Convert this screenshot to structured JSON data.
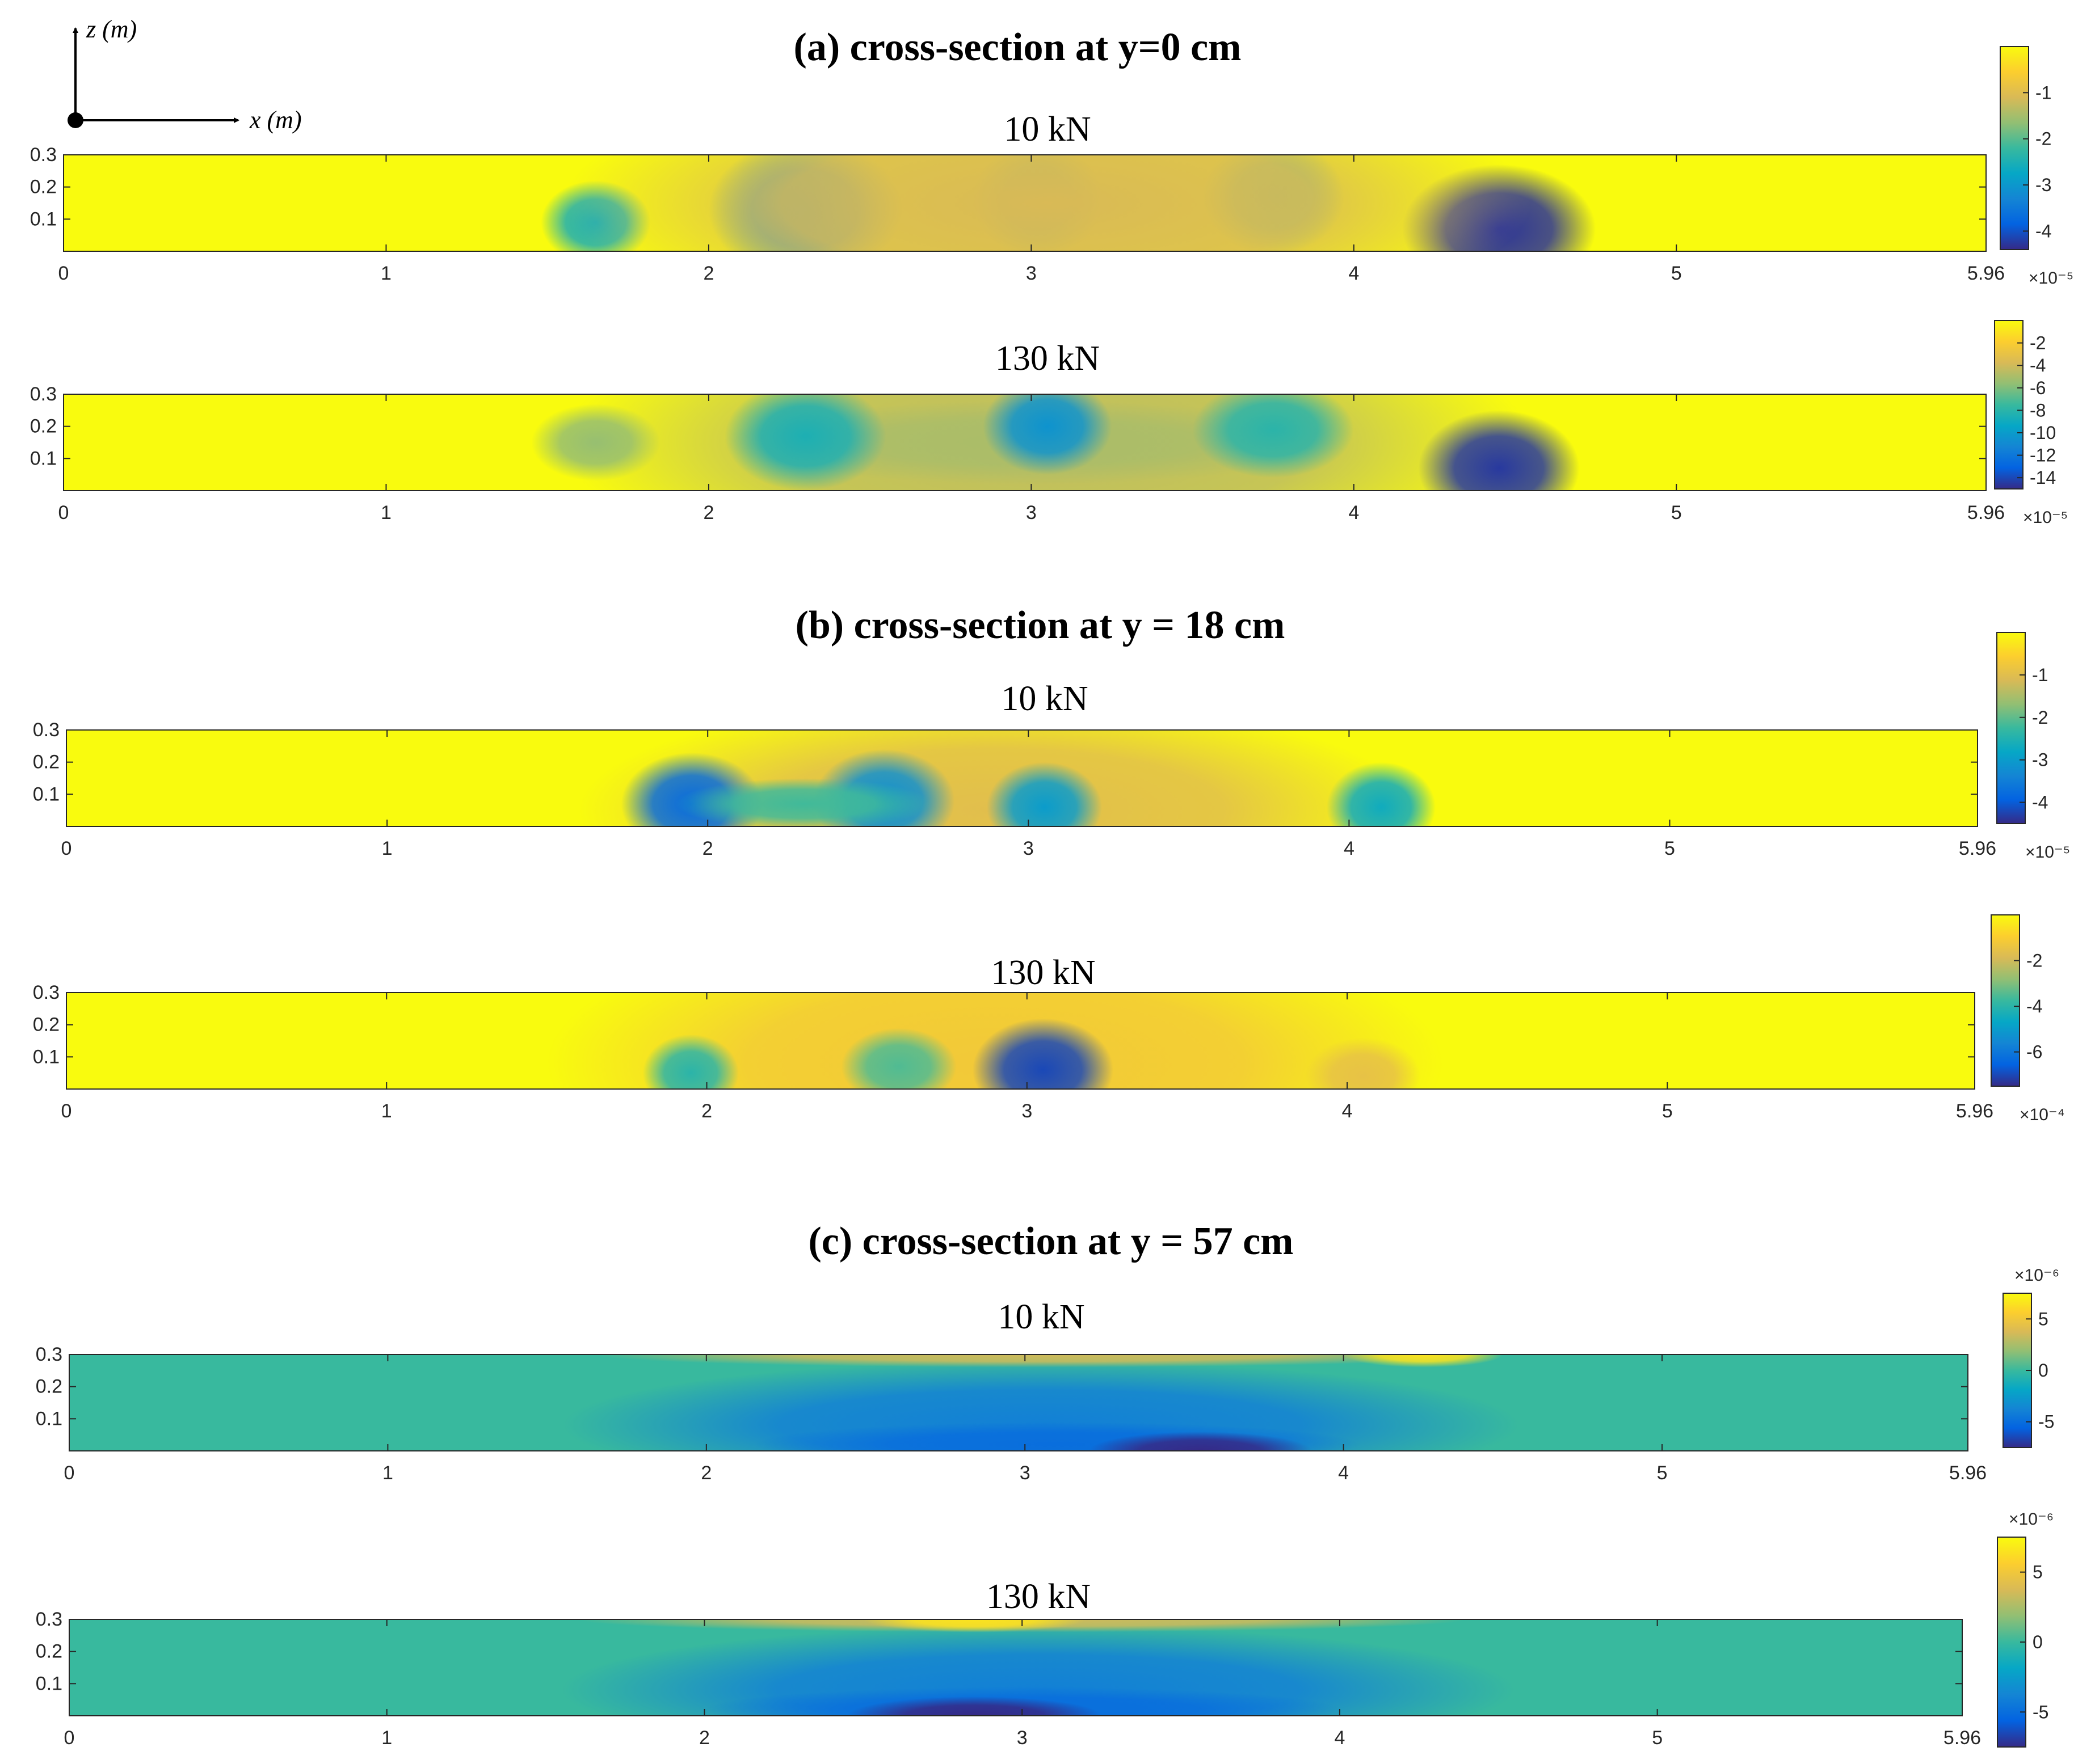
{
  "coord_axes": {
    "z_label": "z (m)",
    "x_label": "x (m)"
  },
  "sections": [
    {
      "title": "(a) cross-section at y=0 cm"
    },
    {
      "title": "(b) cross-section at y = 18 cm"
    },
    {
      "title": "(c) cross-section at y = 57 cm"
    }
  ],
  "chart_data": [
    {
      "type": "heatmap",
      "section": 0,
      "title": "10 kN",
      "xlim": [
        0,
        5.96
      ],
      "ylim": [
        0,
        0.3
      ],
      "xticks": [
        "0",
        "1",
        "2",
        "3",
        "4",
        "5",
        "5.96"
      ],
      "yticks": [
        "0.1",
        "0.2",
        "0.3"
      ],
      "background_value": 0,
      "features": [
        {
          "x": 1.65,
          "z": 0.09,
          "rx": 0.17,
          "rz": 0.13,
          "value": -2.5
        },
        {
          "x": 2.3,
          "z": 0.13,
          "rx": 0.3,
          "rz": 0.22,
          "value": -3.2
        },
        {
          "x": 3.02,
          "z": 0.16,
          "rx": 0.2,
          "rz": 0.18,
          "value": -2.0
        },
        {
          "x": 3.75,
          "z": 0.17,
          "rx": 0.22,
          "rz": 0.18,
          "value": -2.0
        },
        {
          "x": 4.45,
          "z": 0.07,
          "rx": 0.3,
          "rz": 0.2,
          "value": -4.3
        },
        {
          "x": 3.05,
          "z": 0.15,
          "rx": 1.5,
          "rz": 0.4,
          "value": -1.1
        }
      ],
      "colorbar": {
        "ticks": [
          -1,
          -2,
          -3,
          -4
        ],
        "range": [
          -4.4,
          0
        ],
        "exponent": "×10⁻⁵"
      }
    },
    {
      "type": "heatmap",
      "section": 0,
      "title": "130 kN",
      "xlim": [
        0,
        5.96
      ],
      "ylim": [
        0,
        0.3
      ],
      "xticks": [
        "0",
        "1",
        "2",
        "3",
        "4",
        "5",
        "5.96"
      ],
      "yticks": [
        "0.1",
        "0.2",
        "0.3"
      ],
      "background_value": 0,
      "features": [
        {
          "x": 3.05,
          "z": 0.15,
          "rx": 1.5,
          "rz": 0.45,
          "value": -4.5
        },
        {
          "x": 3.0,
          "z": 0.15,
          "rx": 0.95,
          "rz": 0.13,
          "value": -5.0
        },
        {
          "x": 2.3,
          "z": 0.17,
          "rx": 0.25,
          "rz": 0.17,
          "value": -8.5
        },
        {
          "x": 3.05,
          "z": 0.2,
          "rx": 0.2,
          "rz": 0.15,
          "value": -10.5
        },
        {
          "x": 3.75,
          "z": 0.19,
          "rx": 0.25,
          "rz": 0.15,
          "value": -8.0
        },
        {
          "x": 4.45,
          "z": 0.07,
          "rx": 0.25,
          "rz": 0.18,
          "value": -14.5
        },
        {
          "x": 1.65,
          "z": 0.15,
          "rx": 0.2,
          "rz": 0.12,
          "value": -5.5
        }
      ],
      "colorbar": {
        "ticks": [
          -2,
          -4,
          -6,
          -8,
          -10,
          -12,
          -14
        ],
        "range": [
          -15,
          0
        ],
        "exponent": "×10⁻⁵"
      }
    },
    {
      "type": "heatmap",
      "section": 1,
      "title": "10 kN",
      "xlim": [
        0,
        5.96
      ],
      "ylim": [
        0,
        0.3
      ],
      "xticks": [
        "0",
        "1",
        "2",
        "3",
        "4",
        "5",
        "5.96"
      ],
      "yticks": [
        "0.1",
        "0.2",
        "0.3"
      ],
      "background_value": 0,
      "features": [
        {
          "x": 2.9,
          "z": 0.05,
          "rx": 1.3,
          "rz": 0.35,
          "value": -1.0
        },
        {
          "x": 1.95,
          "z": 0.07,
          "rx": 0.22,
          "rz": 0.16,
          "value": -3.8
        },
        {
          "x": 2.55,
          "z": 0.08,
          "rx": 0.22,
          "rz": 0.16,
          "value": -3.2
        },
        {
          "x": 3.05,
          "z": 0.06,
          "rx": 0.18,
          "rz": 0.14,
          "value": -3.0
        },
        {
          "x": 4.1,
          "z": 0.06,
          "rx": 0.17,
          "rz": 0.14,
          "value": -2.7
        },
        {
          "x": 2.3,
          "z": 0.07,
          "rx": 0.4,
          "rz": 0.08,
          "value": -2.2
        }
      ],
      "colorbar": {
        "ticks": [
          -1,
          -2,
          -3,
          -4
        ],
        "range": [
          -4.5,
          0
        ],
        "exponent": "×10⁻⁵"
      }
    },
    {
      "type": "heatmap",
      "section": 1,
      "title": "130 kN",
      "xlim": [
        0,
        5.96
      ],
      "ylim": [
        0,
        0.3
      ],
      "xticks": [
        "0",
        "1",
        "2",
        "3",
        "4",
        "5",
        "5.96"
      ],
      "yticks": [
        "0.1",
        "0.2",
        "0.3"
      ],
      "background_value": 0,
      "features": [
        {
          "x": 2.9,
          "z": 0.08,
          "rx": 1.4,
          "rz": 0.45,
          "value": -1.2
        },
        {
          "x": 1.95,
          "z": 0.05,
          "rx": 0.15,
          "rz": 0.12,
          "value": -4.0
        },
        {
          "x": 2.6,
          "z": 0.07,
          "rx": 0.18,
          "rz": 0.12,
          "value": -3.5
        },
        {
          "x": 3.05,
          "z": 0.06,
          "rx": 0.22,
          "rz": 0.16,
          "value": -7.0
        },
        {
          "x": 4.05,
          "z": 0.04,
          "rx": 0.18,
          "rz": 0.12,
          "value": -1.5
        }
      ],
      "colorbar": {
        "ticks": [
          -2,
          -4,
          -6
        ],
        "range": [
          -7.5,
          0
        ],
        "exponent": "×10⁻⁴"
      }
    },
    {
      "type": "heatmap",
      "section": 2,
      "title": "10 kN",
      "xlim": [
        0,
        5.96
      ],
      "ylim": [
        0,
        0.3
      ],
      "xticks": [
        "0",
        "1",
        "2",
        "3",
        "4",
        "5",
        "5.96"
      ],
      "yticks": [
        "0.1",
        "0.2",
        "0.3"
      ],
      "background_value": 0,
      "features": [
        {
          "x": 3.05,
          "z": 0.08,
          "rx": 1.5,
          "rz": 0.2,
          "value": -4.0
        },
        {
          "x": 3.1,
          "z": 0.02,
          "rx": 0.95,
          "rz": 0.07,
          "value": -5.0
        },
        {
          "x": 3.55,
          "z": 0.0,
          "rx": 0.35,
          "rz": 0.06,
          "value": -7.5
        },
        {
          "x": 3.05,
          "z": 0.3,
          "rx": 1.4,
          "rz": 0.04,
          "value": 3.5
        },
        {
          "x": 4.25,
          "z": 0.3,
          "rx": 0.25,
          "rz": 0.04,
          "value": 6.5
        }
      ],
      "colorbar": {
        "ticks": [
          5,
          0,
          -5
        ],
        "range": [
          -7.5,
          7.5
        ],
        "exponent": "×10⁻⁶"
      }
    },
    {
      "type": "heatmap",
      "section": 2,
      "title": "130 kN",
      "xlim": [
        0,
        5.96
      ],
      "ylim": [
        0,
        0.3
      ],
      "xticks": [
        "0",
        "1",
        "2",
        "3",
        "4",
        "5",
        "5.96"
      ],
      "yticks": [
        "0.1",
        "0.2",
        "0.3"
      ],
      "background_value": 0,
      "features": [
        {
          "x": 3.05,
          "z": 0.08,
          "rx": 1.5,
          "rz": 0.2,
          "value": -4.0
        },
        {
          "x": 3.0,
          "z": 0.02,
          "rx": 1.0,
          "rz": 0.07,
          "value": -5.0
        },
        {
          "x": 2.85,
          "z": 0.0,
          "rx": 0.4,
          "rz": 0.06,
          "value": -7.5
        },
        {
          "x": 3.0,
          "z": 0.3,
          "rx": 1.4,
          "rz": 0.04,
          "value": 3.5
        },
        {
          "x": 2.85,
          "z": 0.3,
          "rx": 0.35,
          "rz": 0.04,
          "value": 6.5
        }
      ],
      "colorbar": {
        "ticks": [
          5,
          0,
          -5
        ],
        "range": [
          -7.5,
          7.5
        ],
        "exponent": "×10⁻⁶"
      }
    }
  ]
}
